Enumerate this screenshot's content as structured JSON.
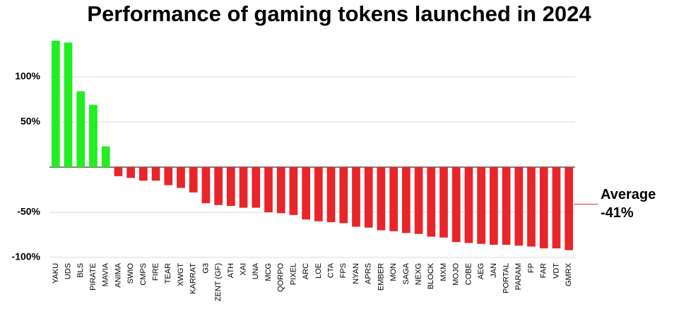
{
  "chart_data": {
    "type": "bar",
    "title": "Performance of gaming tokens launched in 2024",
    "categories": [
      "YAKU",
      "UDS",
      "BLS",
      "PIRATE",
      "MAVIA",
      "ANIMA",
      "SWIO",
      "CMPS",
      "FIRE",
      "TEAR",
      "XWGT",
      "KARRAT",
      "G3",
      "ZENT (GF)",
      "ATH",
      "XAI",
      "UNA",
      "MCG",
      "QORPO",
      "PIXEL",
      "ARC",
      "LOE",
      "CTA",
      "FPS",
      "NYAN",
      "APRS",
      "EMBER",
      "MON",
      "SAGA",
      "NEXG",
      "BLOCK",
      "MXM",
      "MOJO",
      "COBE",
      "AEG",
      "JAN",
      "PORTAL",
      "PARAM",
      "FP",
      "FAR",
      "VDT",
      "GMRX"
    ],
    "values": [
      140,
      138,
      84,
      69,
      23,
      -10,
      -12,
      -15,
      -15,
      -20,
      -23,
      -28,
      -40,
      -42,
      -43,
      -45,
      -45,
      -50,
      -51,
      -53,
      -58,
      -60,
      -61,
      -62,
      -66,
      -67,
      -70,
      -71,
      -73,
      -74,
      -77,
      -78,
      -83,
      -84,
      -85,
      -86,
      -86,
      -87,
      -88,
      -90,
      -90,
      -92
    ],
    "positive_color": "#22ee22",
    "negative_color": "#e8252a",
    "ylim": [
      -100,
      140
    ],
    "yticks": [
      {
        "value": 100,
        "label": "100%"
      },
      {
        "value": 50,
        "label": "50%"
      },
      {
        "value": -50,
        "label": "-50%"
      },
      {
        "value": -100,
        "label": "-100%"
      }
    ],
    "grid": true,
    "average": {
      "text": "Average",
      "value": -41,
      "label": "-41%"
    }
  }
}
